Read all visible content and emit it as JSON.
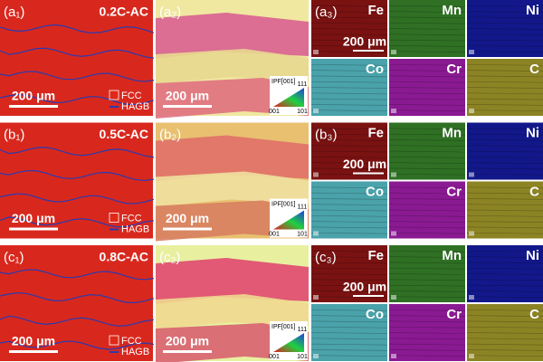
{
  "rows": [
    {
      "panels": [
        {
          "label": "(a₁)",
          "sample": "0.2C-AC",
          "scale_bar": "200 μm",
          "legend": [
            "FCC",
            "HAGB"
          ]
        },
        {
          "label": "(a₂)",
          "scale_bar": "200 μm",
          "ipf": {
            "title": "IPF[001]",
            "corners": [
              "111",
              "001",
              "101"
            ]
          }
        },
        {
          "label": "(a₃)",
          "scale_bar": "200 μm",
          "elements": [
            "Fe",
            "Mn",
            "Ni",
            "Co",
            "Cr",
            "C"
          ]
        }
      ]
    },
    {
      "panels": [
        {
          "label": "(b₁)",
          "sample": "0.5C-AC",
          "scale_bar": "200 μm",
          "legend": [
            "FCC",
            "HAGB"
          ]
        },
        {
          "label": "(b₂)",
          "scale_bar": "200 μm",
          "ipf": {
            "title": "IPF[001]",
            "corners": [
              "111",
              "001",
              "101"
            ]
          }
        },
        {
          "label": "(b₃)",
          "scale_bar": "200 μm",
          "elements": [
            "Fe",
            "Mn",
            "Ni",
            "Co",
            "Cr",
            "C"
          ]
        }
      ]
    },
    {
      "panels": [
        {
          "label": "(c₁)",
          "sample": "0.8C-AC",
          "scale_bar": "200 μm",
          "legend": [
            "FCC",
            "HAGB"
          ]
        },
        {
          "label": "(c₂)",
          "scale_bar": "200 μm",
          "ipf": {
            "title": "IPF[001]",
            "corners": [
              "111",
              "001",
              "101"
            ]
          }
        },
        {
          "label": "(c₃)",
          "scale_bar": "200 μm",
          "elements": [
            "Fe",
            "Mn",
            "Ni",
            "Co",
            "Cr",
            "C"
          ]
        }
      ]
    }
  ]
}
